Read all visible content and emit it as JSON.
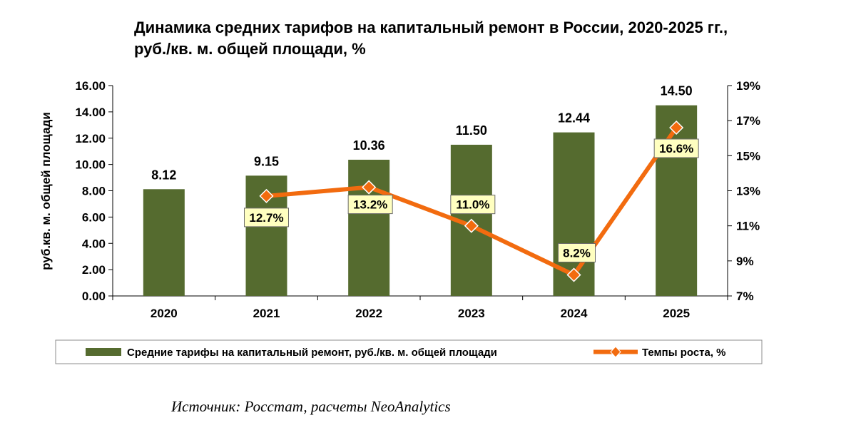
{
  "chart_data": {
    "type": "bar",
    "title_line1": "Динамика средних тарифов на капитальный ремонт в России, 2020-2025 гг.,",
    "title_line2": "руб./кв. м. общей площади, %",
    "categories": [
      "2020",
      "2021",
      "2022",
      "2023",
      "2024",
      "2025"
    ],
    "series": [
      {
        "name": "Средние  тарифы на капитальный ремонт, руб./кв. м. общей площади",
        "type": "bar",
        "axis": "left",
        "values": [
          8.12,
          9.15,
          10.36,
          11.5,
          12.44,
          14.5
        ],
        "labels": [
          "8.12",
          "9.15",
          "10.36",
          "11.50",
          "12.44",
          "14.50"
        ],
        "color": "#556b2f"
      },
      {
        "name": "Темпы роста, %",
        "type": "line",
        "axis": "right",
        "values": [
          null,
          12.7,
          13.2,
          11.0,
          8.2,
          16.6
        ],
        "labels": [
          null,
          "12.7%",
          "13.2%",
          "11.0%",
          "8.2%",
          "16.6%"
        ],
        "color": "#f26b0f",
        "marker_color": "#f26b0f",
        "label_bg": "#ffffc0"
      }
    ],
    "ylabel": "руб.кв. м. общей площади",
    "ylim": [
      0,
      16
    ],
    "yticks": [
      "0.00",
      "2.00",
      "4.00",
      "6.00",
      "8.00",
      "10.00",
      "12.00",
      "14.00",
      "16.00"
    ],
    "y2lim": [
      7,
      19
    ],
    "y2ticks": [
      "7%",
      "9%",
      "11%",
      "13%",
      "15%",
      "17%",
      "19%"
    ],
    "legend_position": "bottom"
  },
  "source": "Источник: Росстат, расчеты NeoAnalytics"
}
